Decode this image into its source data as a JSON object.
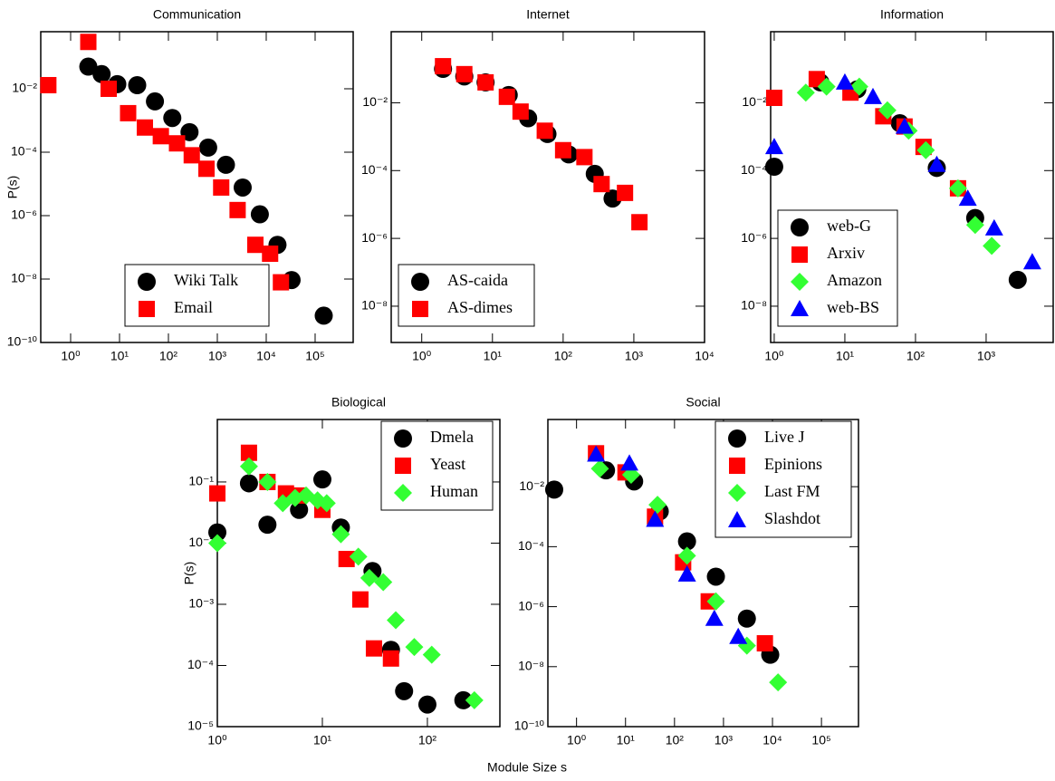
{
  "xlabel": "Module Size s",
  "chart_data": [
    {
      "type": "scatter",
      "title": "Communication",
      "ylabel": "P(s)",
      "xscale": "log",
      "yscale": "log",
      "legend": "lower center",
      "xlim": [
        0.245,
        600000
      ],
      "ylim": [
        1e-10,
        0.63
      ],
      "xticks": [
        {
          "value": 1,
          "label": "10⁰"
        },
        {
          "value": 10,
          "label": "10¹"
        },
        {
          "value": 100,
          "label": "10²"
        },
        {
          "value": 1000,
          "label": "10³"
        },
        {
          "value": 10000,
          "label": "10⁴"
        },
        {
          "value": 100000,
          "label": "10⁵"
        }
      ],
      "yticks": [
        {
          "value": 1e-10,
          "label": "10⁻¹⁰"
        },
        {
          "value": 1e-08,
          "label": "10⁻⁸"
        },
        {
          "value": 1e-06,
          "label": "10⁻⁶"
        },
        {
          "value": 0.0001,
          "label": "10⁻⁴"
        },
        {
          "value": 0.01,
          "label": "10⁻²"
        }
      ],
      "series": [
        {
          "name": "Wiki Talk",
          "color": "#000000",
          "marker": "circle",
          "x": [
            2.3,
            4.3,
            9,
            23,
            53,
            120,
            270,
            650,
            1500,
            3300,
            7400,
            17000,
            33000,
            150000
          ],
          "values": [
            0.05,
            0.029,
            0.014,
            0.013,
            0.004,
            0.0012,
            0.00043,
            0.00014,
            4e-05,
            7.7e-06,
            1.1e-06,
            1.2e-07,
            9.3e-09,
            7e-10
          ]
        },
        {
          "name": "Email",
          "color": "#ff0000",
          "marker": "square",
          "x": [
            0.35,
            2.3,
            6,
            15,
            33,
            70,
            150,
            300,
            600,
            1200,
            2600,
            6000,
            12000,
            20000
          ],
          "values": [
            0.013,
            0.3,
            0.01,
            0.0017,
            0.0006,
            0.00032,
            0.00019,
            8e-05,
            3e-05,
            7.7e-06,
            1.5e-06,
            1.2e-07,
            6.3e-08,
            7.9e-09
          ]
        }
      ]
    },
    {
      "type": "scatter",
      "title": "Internet",
      "xscale": "log",
      "yscale": "log",
      "legend": "lower left",
      "xlim": [
        0.37,
        10000
      ],
      "ylim": [
        8.5e-10,
        1.25
      ],
      "xticks": [
        {
          "value": 1,
          "label": "10⁰"
        },
        {
          "value": 10,
          "label": "10¹"
        },
        {
          "value": 100,
          "label": "10²"
        },
        {
          "value": 1000,
          "label": "10³"
        },
        {
          "value": 10000,
          "label": "10⁴"
        }
      ],
      "yticks": [
        {
          "value": 1e-08,
          "label": "10⁻⁸"
        },
        {
          "value": 1e-06,
          "label": "10⁻⁶"
        },
        {
          "value": 0.0001,
          "label": "10⁻⁴"
        },
        {
          "value": 0.01,
          "label": "10⁻²"
        }
      ],
      "series": [
        {
          "name": "AS-caida",
          "color": "#000000",
          "marker": "circle",
          "x": [
            2,
            4,
            8,
            17,
            32,
            60,
            120,
            280,
            500
          ],
          "values": [
            0.1,
            0.06,
            0.04,
            0.017,
            0.0035,
            0.0012,
            0.0003,
            8e-05,
            1.5e-05
          ]
        },
        {
          "name": "AS-dimes",
          "color": "#ff0000",
          "marker": "square",
          "x": [
            2,
            4,
            8,
            16,
            25,
            55,
            100,
            200,
            350,
            750,
            1200
          ],
          "values": [
            0.12,
            0.07,
            0.04,
            0.015,
            0.0055,
            0.0015,
            0.0004,
            0.00025,
            4e-05,
            2.2e-05,
            3e-06
          ]
        }
      ]
    },
    {
      "type": "scatter",
      "title": "Information",
      "xscale": "log",
      "yscale": "log",
      "legend": "lower left",
      "xlim": [
        0.89,
        8900
      ],
      "ylim": [
        8.5e-10,
        1.25
      ],
      "xticks": [
        {
          "value": 1,
          "label": "10⁰"
        },
        {
          "value": 10,
          "label": "10¹"
        },
        {
          "value": 100,
          "label": "10²"
        },
        {
          "value": 1000,
          "label": "10³"
        }
      ],
      "yticks": [
        {
          "value": 1e-08,
          "label": "10⁻⁸"
        },
        {
          "value": 1e-06,
          "label": "10⁻⁶"
        },
        {
          "value": 0.0001,
          "label": "10⁻⁴"
        },
        {
          "value": 0.01,
          "label": "10⁻²"
        }
      ],
      "series": [
        {
          "name": "web-G",
          "color": "#000000",
          "marker": "circle",
          "x": [
            1,
            4.5,
            15,
            60,
            200,
            700,
            2800
          ],
          "values": [
            0.00013,
            0.04,
            0.025,
            0.0025,
            0.00012,
            4e-06,
            6e-08
          ]
        },
        {
          "name": "Arxiv",
          "color": "#ff0000",
          "marker": "square",
          "x": [
            1,
            4,
            12,
            35,
            70,
            130,
            400
          ],
          "values": [
            0.014,
            0.05,
            0.02,
            0.004,
            0.002,
            0.0005,
            3e-05
          ]
        },
        {
          "name": "Amazon",
          "color": "#33ff33",
          "marker": "diamond",
          "x": [
            2.8,
            5.5,
            16,
            40,
            80,
            140,
            400,
            700,
            1200
          ],
          "values": [
            0.02,
            0.03,
            0.03,
            0.006,
            0.0015,
            0.0004,
            3e-05,
            2.5e-06,
            6e-07
          ]
        },
        {
          "name": "web-BS",
          "color": "#0000ff",
          "marker": "triangle",
          "x": [
            1,
            10,
            25,
            70,
            200,
            550,
            1300,
            4500
          ],
          "values": [
            0.0005,
            0.04,
            0.015,
            0.002,
            0.00015,
            1.5e-05,
            2e-06,
            2e-07
          ]
        }
      ]
    },
    {
      "type": "scatter",
      "title": "Biological",
      "ylabel": "P(s)",
      "xscale": "log",
      "yscale": "log",
      "legend": "upper right",
      "xlim": [
        1,
        490
      ],
      "ylim": [
        1e-05,
        1.05
      ],
      "xticks": [
        {
          "value": 1,
          "label": "10⁰"
        },
        {
          "value": 10,
          "label": "10¹"
        },
        {
          "value": 100,
          "label": "10²"
        }
      ],
      "yticks": [
        {
          "value": 1e-05,
          "label": "10⁻⁵"
        },
        {
          "value": 0.0001,
          "label": "10⁻⁴"
        },
        {
          "value": 0.001,
          "label": "10⁻³"
        },
        {
          "value": 0.01,
          "label": "10⁻²"
        },
        {
          "value": 0.1,
          "label": "10⁻¹"
        }
      ],
      "series": [
        {
          "name": "Dmela",
          "color": "#000000",
          "marker": "circle",
          "x": [
            1,
            2,
            3,
            6,
            10,
            15,
            30,
            45,
            60,
            100,
            220
          ],
          "values": [
            0.015,
            0.095,
            0.02,
            0.035,
            0.11,
            0.018,
            0.0035,
            0.00018,
            3.8e-05,
            2.3e-05,
            2.7e-05
          ]
        },
        {
          "name": "Yeast",
          "color": "#ff0000",
          "marker": "square",
          "x": [
            1,
            2,
            3,
            4.5,
            6,
            10,
            17,
            23,
            31,
            45
          ],
          "values": [
            0.065,
            0.3,
            0.1,
            0.065,
            0.06,
            0.035,
            0.0055,
            0.0012,
            0.00019,
            0.00013
          ]
        },
        {
          "name": "Human",
          "color": "#33ff33",
          "marker": "diamond",
          "x": [
            1,
            2,
            3,
            4.2,
            5.5,
            7,
            9,
            11,
            15,
            22,
            28,
            38,
            50,
            75,
            110,
            280
          ],
          "values": [
            0.01,
            0.18,
            0.1,
            0.045,
            0.055,
            0.06,
            0.05,
            0.045,
            0.014,
            0.006,
            0.0027,
            0.0023,
            0.00055,
            0.0002,
            0.00015,
            2.7e-05
          ]
        }
      ]
    },
    {
      "type": "scatter",
      "title": "Social",
      "xscale": "log",
      "yscale": "log",
      "legend": "upper right",
      "xlim": [
        0.26,
        570000
      ],
      "ylim": [
        1e-10,
        1.74
      ],
      "xticks": [
        {
          "value": 1,
          "label": "10⁰"
        },
        {
          "value": 10,
          "label": "10¹"
        },
        {
          "value": 100,
          "label": "10²"
        },
        {
          "value": 1000,
          "label": "10³"
        },
        {
          "value": 10000,
          "label": "10⁴"
        },
        {
          "value": 100000,
          "label": "10⁵"
        }
      ],
      "yticks": [
        {
          "value": 1e-10,
          "label": "10⁻¹⁰"
        },
        {
          "value": 1e-08,
          "label": "10⁻⁸"
        },
        {
          "value": 1e-06,
          "label": "10⁻⁶"
        },
        {
          "value": 0.0001,
          "label": "10⁻⁴"
        },
        {
          "value": 0.01,
          "label": "10⁻²"
        }
      ],
      "series": [
        {
          "name": "Live J",
          "color": "#000000",
          "marker": "circle",
          "x": [
            0.35,
            4,
            15,
            50,
            180,
            700,
            3000,
            9000
          ],
          "values": [
            0.008,
            0.035,
            0.015,
            0.0015,
            0.00015,
            1e-05,
            4e-07,
            2.5e-08
          ]
        },
        {
          "name": "Epinions",
          "color": "#ff0000",
          "marker": "square",
          "x": [
            2.5,
            10,
            40,
            150,
            500,
            7000
          ],
          "values": [
            0.13,
            0.03,
            0.001,
            3e-05,
            1.5e-06,
            6e-08
          ]
        },
        {
          "name": "Last FM",
          "color": "#33ff33",
          "marker": "diamond",
          "x": [
            3,
            13,
            45,
            180,
            700,
            3000,
            13000
          ],
          "values": [
            0.04,
            0.025,
            0.0025,
            5e-05,
            1.5e-06,
            5e-08,
            3e-09
          ]
        },
        {
          "name": "Slashdot",
          "color": "#0000ff",
          "marker": "triangle",
          "x": [
            2.5,
            12,
            40,
            180,
            650,
            2000
          ],
          "values": [
            0.12,
            0.06,
            0.0008,
            1.2e-05,
            4e-07,
            1e-07
          ]
        }
      ]
    }
  ]
}
